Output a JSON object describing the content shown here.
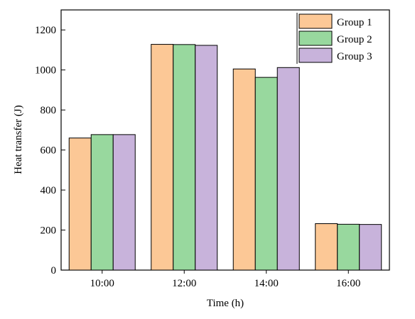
{
  "chart_data": {
    "type": "bar",
    "categories": [
      "10:00",
      "12:00",
      "14:00",
      "16:00"
    ],
    "series": [
      {
        "name": "Group 1",
        "values": [
          660,
          1128,
          1005,
          232
        ],
        "color": "#FCC896"
      },
      {
        "name": "Group 2",
        "values": [
          677,
          1127,
          963,
          229
        ],
        "color": "#98D89E"
      },
      {
        "name": "Group 3",
        "values": [
          677,
          1123,
          1012,
          228
        ],
        "color": "#C8B3DB"
      }
    ],
    "xlabel": "Time (h)",
    "ylabel": "Heat transfer (J)",
    "ylim": [
      0,
      1300
    ],
    "yticks": [
      0,
      200,
      400,
      600,
      800,
      1000,
      1200
    ],
    "grid": false,
    "legend_position": "top-right",
    "bar_edge_color": "#000000"
  }
}
